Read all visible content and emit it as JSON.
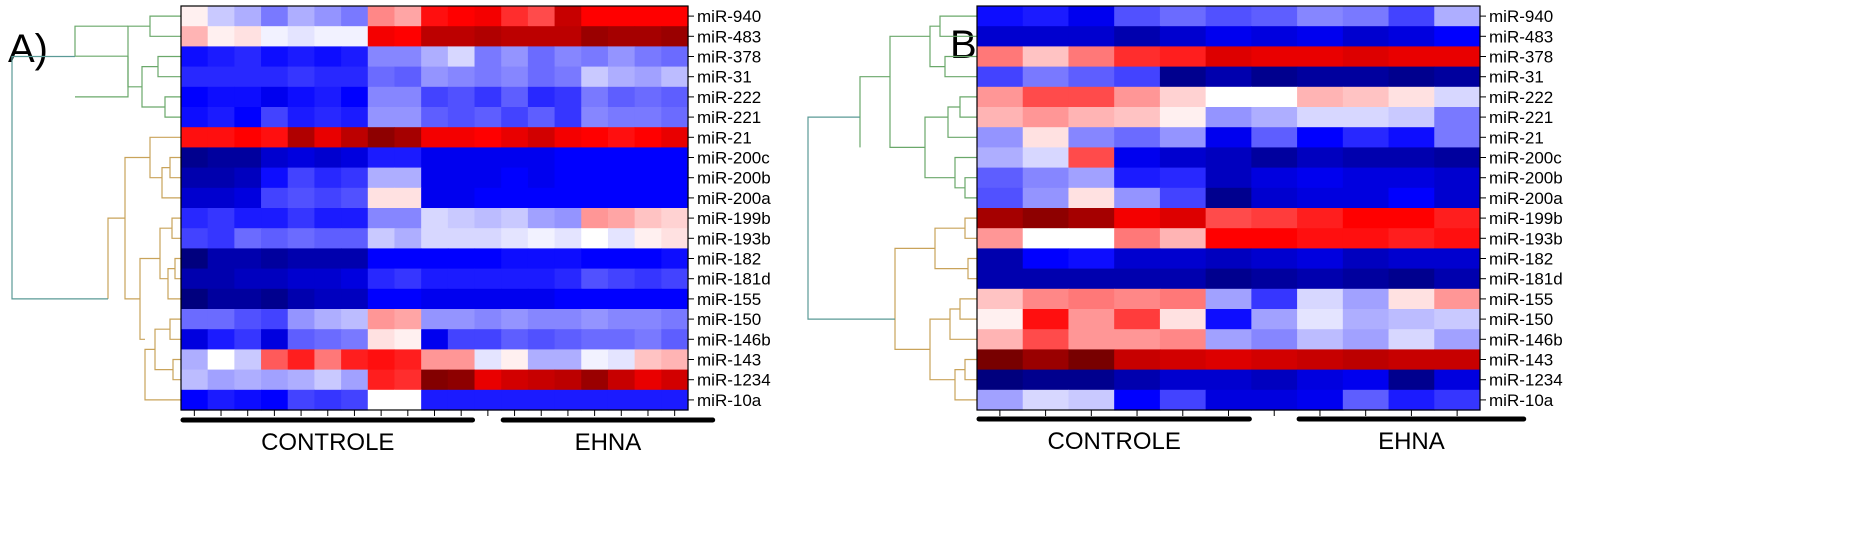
{
  "chart_data": [
    {
      "panel": "A)",
      "type": "heatmap",
      "rows": [
        "miR-940",
        "miR-483",
        "miR-378",
        "miR-31",
        "miR-222",
        "miR-221",
        "miR-21",
        "miR-200c",
        "miR-200b",
        "miR-200a",
        "miR-199b",
        "miR-193b",
        "miR-182",
        "miR-181d",
        "miR-155",
        "miR-150",
        "miR-146b",
        "miR-143",
        "miR-1234",
        "miR-10a"
      ],
      "groups": [
        {
          "label": "CONTROLE",
          "start": 0,
          "end": 10
        },
        {
          "label": "EHNA",
          "start": 12,
          "end": 19
        }
      ],
      "values": [
        [
          0.05,
          -0.2,
          -0.3,
          -0.5,
          -0.3,
          -0.4,
          -0.5,
          0.4,
          0.3,
          0.8,
          0.85,
          0.9,
          0.7,
          0.6,
          1.1,
          0.85,
          0.85,
          0.85,
          0.85
        ],
        [
          0.25,
          0.05,
          0.1,
          -0.05,
          -0.1,
          -0.05,
          -0.05,
          0.9,
          0.85,
          1.15,
          1.15,
          1.2,
          1.15,
          1.15,
          1.15,
          1.3,
          1.25,
          1.25,
          1.3
        ],
        [
          -0.9,
          -0.85,
          -0.8,
          -0.9,
          -0.85,
          -0.9,
          -0.85,
          -0.45,
          -0.45,
          -0.3,
          -0.15,
          -0.5,
          -0.4,
          -0.55,
          -0.45,
          -0.5,
          -0.4,
          -0.5,
          -0.55
        ],
        [
          -0.8,
          -0.8,
          -0.8,
          -0.8,
          -0.75,
          -0.8,
          -0.8,
          -0.55,
          -0.6,
          -0.4,
          -0.45,
          -0.5,
          -0.45,
          -0.55,
          -0.5,
          -0.2,
          -0.3,
          -0.35,
          -0.25
        ],
        [
          -0.95,
          -0.9,
          -0.9,
          -1.0,
          -0.9,
          -0.85,
          -0.95,
          -0.45,
          -0.45,
          -0.7,
          -0.65,
          -0.75,
          -0.6,
          -0.8,
          -0.75,
          -0.5,
          -0.6,
          -0.55,
          -0.6
        ],
        [
          -0.9,
          -0.85,
          -0.95,
          -0.7,
          -0.85,
          -0.8,
          -0.85,
          -0.4,
          -0.4,
          -0.6,
          -0.65,
          -0.6,
          -0.7,
          -0.6,
          -0.75,
          -0.45,
          -0.5,
          -0.5,
          -0.55
        ],
        [
          0.8,
          0.8,
          0.85,
          0.8,
          1.2,
          0.95,
          1.15,
          1.35,
          1.25,
          0.9,
          0.9,
          0.85,
          0.95,
          1.05,
          0.9,
          0.85,
          0.8,
          0.85,
          0.95
        ],
        [
          -1.3,
          -1.25,
          -1.25,
          -1.1,
          -1.05,
          -1.1,
          -1.05,
          -0.85,
          -0.85,
          -1.0,
          -1.0,
          -1.0,
          -1.0,
          -1.0,
          -0.95,
          -0.95,
          -0.95,
          -0.95,
          -0.95
        ],
        [
          -1.2,
          -1.2,
          -1.15,
          -0.9,
          -0.7,
          -0.8,
          -0.75,
          -0.3,
          -0.3,
          -1.0,
          -1.0,
          -1.0,
          -0.95,
          -1.0,
          -0.95,
          -0.95,
          -0.95,
          -0.95,
          -0.95
        ],
        [
          -1.1,
          -1.1,
          -1.05,
          -0.7,
          -0.65,
          -0.7,
          -0.65,
          0.1,
          0.1,
          -1.0,
          -1.0,
          -0.95,
          -0.95,
          -0.95,
          -0.95,
          -0.95,
          -0.95,
          -0.95,
          -0.95
        ],
        [
          -0.8,
          -0.75,
          -0.85,
          -0.85,
          -0.75,
          -0.85,
          -0.85,
          -0.45,
          -0.45,
          -0.15,
          -0.2,
          -0.25,
          -0.2,
          -0.35,
          -0.4,
          0.35,
          0.3,
          0.2,
          0.15
        ],
        [
          -0.7,
          -0.75,
          -0.55,
          -0.6,
          -0.55,
          -0.6,
          -0.6,
          -0.2,
          -0.3,
          -0.15,
          -0.15,
          -0.15,
          -0.1,
          -0.05,
          -0.1,
          0.0,
          -0.1,
          0.05,
          0.1
        ],
        [
          -1.35,
          -1.2,
          -1.2,
          -1.25,
          -1.2,
          -1.2,
          -1.2,
          -0.95,
          -0.95,
          -0.95,
          -0.95,
          -0.95,
          -0.9,
          -0.9,
          -0.9,
          -0.95,
          -0.95,
          -0.95,
          -0.9
        ],
        [
          -1.2,
          -1.2,
          -1.15,
          -1.15,
          -1.1,
          -1.1,
          -1.05,
          -0.8,
          -0.75,
          -0.85,
          -0.85,
          -0.85,
          -0.85,
          -0.85,
          -0.8,
          -0.65,
          -0.7,
          -0.75,
          -0.7
        ],
        [
          -1.35,
          -1.25,
          -1.25,
          -1.3,
          -1.2,
          -1.15,
          -1.15,
          -0.95,
          -0.95,
          -1.0,
          -1.0,
          -1.0,
          -1.0,
          -1.0,
          -0.95,
          -0.95,
          -0.95,
          -0.95,
          -0.95
        ],
        [
          -0.55,
          -0.55,
          -0.65,
          -0.7,
          -0.4,
          -0.3,
          -0.25,
          0.35,
          0.3,
          -0.4,
          -0.4,
          -0.45,
          -0.4,
          -0.45,
          -0.45,
          -0.4,
          -0.45,
          -0.45,
          -0.5
        ],
        [
          -1.05,
          -0.85,
          -0.75,
          -1.05,
          -0.6,
          -0.55,
          -0.5,
          0.1,
          0.05,
          -1.0,
          -0.7,
          -0.7,
          -0.6,
          -0.65,
          -0.6,
          -0.55,
          -0.55,
          -0.5,
          -0.6
        ],
        [
          -0.3,
          0.0,
          -0.2,
          0.55,
          0.75,
          0.45,
          0.75,
          0.8,
          0.75,
          0.35,
          0.35,
          -0.1,
          0.05,
          -0.3,
          -0.3,
          -0.05,
          -0.1,
          0.2,
          0.25
        ],
        [
          -0.25,
          -0.35,
          -0.3,
          -0.35,
          -0.3,
          -0.2,
          -0.35,
          0.75,
          0.7,
          1.4,
          1.35,
          0.95,
          1.05,
          1.1,
          1.15,
          1.3,
          1.1,
          0.95,
          1.05
        ],
        [
          -0.95,
          -0.85,
          -0.9,
          -0.95,
          -0.7,
          -0.75,
          -0.7,
          0.0,
          0.0,
          -0.85,
          -0.85,
          -0.85,
          -0.85,
          -0.85,
          -0.85,
          -0.85,
          -0.85,
          -0.85,
          -0.85
        ]
      ]
    },
    {
      "panel": "B)",
      "type": "heatmap",
      "rows": [
        "miR-940",
        "miR-483",
        "miR-378",
        "miR-31",
        "miR-222",
        "miR-221",
        "miR-21",
        "miR-200c",
        "miR-200b",
        "miR-200a",
        "miR-199b",
        "miR-193b",
        "miR-182",
        "miR-181d",
        "miR-155",
        "miR-150",
        "miR-146b",
        "miR-143",
        "miR-1234",
        "miR-10a"
      ],
      "groups": [
        {
          "label": "CONTROLE",
          "start": 0,
          "end": 5
        },
        {
          "label": "EHNA",
          "start": 7,
          "end": 11
        }
      ],
      "values": [
        [
          -0.9,
          -0.85,
          -1.0,
          -0.65,
          -0.55,
          -0.65,
          -0.6,
          -0.45,
          -0.5,
          -0.7,
          -0.3
        ],
        [
          -1.1,
          -1.1,
          -1.1,
          -1.2,
          -1.1,
          -1.0,
          -1.05,
          -1.0,
          -1.1,
          -1.05,
          -0.95
        ],
        [
          0.45,
          0.2,
          0.45,
          0.7,
          0.75,
          1.0,
          0.95,
          0.95,
          1.0,
          0.95,
          0.95
        ],
        [
          -0.7,
          -0.5,
          -0.6,
          -0.7,
          -1.3,
          -1.2,
          -1.3,
          -1.25,
          -1.25,
          -1.3,
          -1.25
        ],
        [
          0.35,
          0.6,
          0.6,
          0.35,
          0.15,
          0.0,
          0.0,
          0.25,
          0.2,
          0.1,
          -0.15
        ],
        [
          0.25,
          0.35,
          0.25,
          0.2,
          0.05,
          -0.4,
          -0.3,
          -0.15,
          -0.15,
          -0.2,
          -0.5
        ],
        [
          -0.4,
          0.1,
          -0.45,
          -0.55,
          -0.4,
          -1.0,
          -0.6,
          -0.95,
          -0.8,
          -0.9,
          -0.5
        ],
        [
          -0.3,
          -0.15,
          0.6,
          -1.0,
          -1.1,
          -1.15,
          -1.25,
          -1.15,
          -1.2,
          -1.2,
          -1.25
        ],
        [
          -0.6,
          -0.45,
          -0.35,
          -0.85,
          -0.8,
          -1.15,
          -1.05,
          -1.0,
          -1.05,
          -1.05,
          -1.1
        ],
        [
          -0.65,
          -0.4,
          0.1,
          -0.4,
          -0.7,
          -1.3,
          -1.1,
          -1.05,
          -1.05,
          -0.95,
          -1.1
        ],
        [
          1.25,
          1.35,
          1.25,
          0.9,
          1.0,
          0.6,
          0.65,
          0.75,
          0.85,
          0.85,
          0.75
        ],
        [
          0.35,
          0.0,
          0.0,
          0.45,
          0.25,
          0.85,
          0.85,
          0.8,
          0.8,
          0.75,
          0.8
        ],
        [
          -1.2,
          -0.95,
          -0.9,
          -1.1,
          -1.1,
          -1.15,
          -1.1,
          -1.05,
          -1.15,
          -1.1,
          -1.1
        ],
        [
          -1.2,
          -1.2,
          -1.2,
          -1.2,
          -1.2,
          -1.3,
          -1.25,
          -1.2,
          -1.25,
          -1.3,
          -1.2
        ],
        [
          0.2,
          0.4,
          0.45,
          0.4,
          0.45,
          -0.35,
          -0.75,
          -0.15,
          -0.35,
          0.1,
          0.35
        ],
        [
          0.05,
          0.8,
          0.35,
          0.65,
          0.1,
          -0.9,
          -0.35,
          -0.1,
          -0.3,
          -0.25,
          -0.2
        ],
        [
          0.25,
          0.6,
          0.35,
          0.35,
          0.4,
          -0.35,
          -0.45,
          -0.25,
          -0.35,
          -0.15,
          -0.35
        ],
        [
          1.45,
          1.3,
          1.45,
          1.1,
          1.05,
          1.0,
          1.05,
          1.1,
          1.15,
          1.1,
          1.1
        ],
        [
          -1.35,
          -1.3,
          -1.3,
          -1.2,
          -1.1,
          -1.1,
          -1.15,
          -1.05,
          -1.0,
          -1.3,
          -1.05
        ],
        [
          -0.35,
          -0.15,
          -0.2,
          -0.95,
          -0.7,
          -1.05,
          -1.05,
          -1.0,
          -0.6,
          -0.85,
          -0.75
        ]
      ]
    }
  ],
  "colors": {
    "low": "#00006e",
    "mid_low": "#0000ff",
    "mid": "#ffffff",
    "mid_high": "#ff0000",
    "high": "#780000",
    "dendro_green": "#6aa86a",
    "dendro_tan": "#c9a35a",
    "dendro_teal": "#5a9a96"
  }
}
